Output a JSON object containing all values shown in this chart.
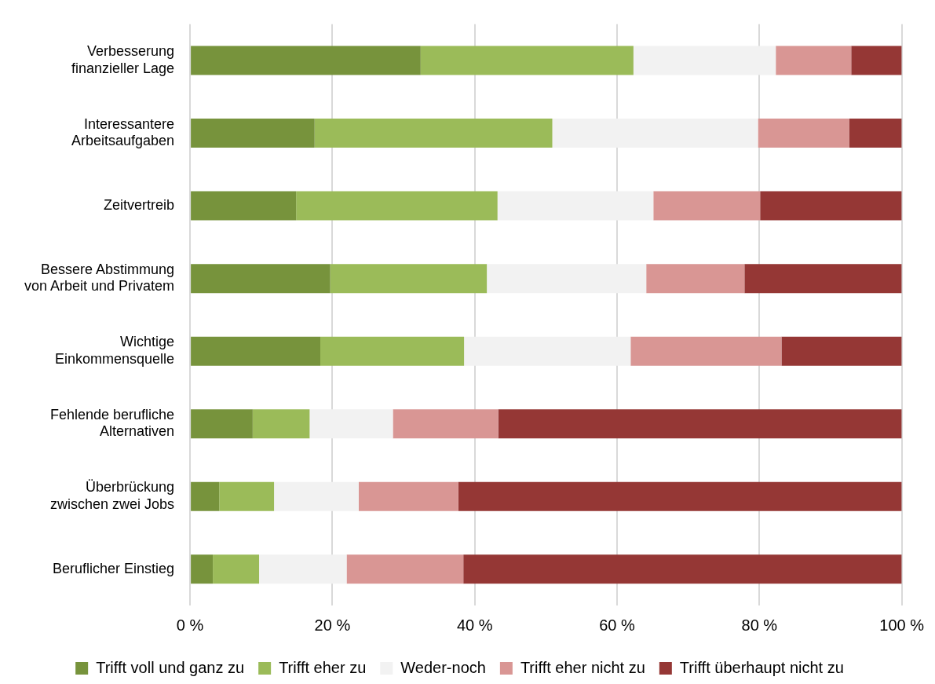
{
  "chart_data": {
    "type": "bar",
    "orientation": "horizontal",
    "stacked": true,
    "categories": [
      "Verbesserung\nfinanzieller Lage",
      "Interessantere\nArbeitsaufgaben",
      "Zeitvertreib",
      "Bessere Abstimmung\nvon Arbeit und Privatem",
      "Wichtige\nEinkommensquelle",
      "Fehlende berufliche\nAlternativen",
      "Überbrückung\nzwischen zwei Jobs",
      "Beruflicher Einstieg"
    ],
    "series": [
      {
        "name": "Trifft voll und ganz zu",
        "color": "#77933c",
        "values": [
          32.4,
          17.5,
          14.9,
          19.7,
          18.3,
          8.8,
          4.1,
          3.2
        ]
      },
      {
        "name": "Trifft eher zu",
        "color": "#9bbb59",
        "values": [
          29.9,
          33.4,
          28.3,
          22.0,
          20.2,
          8.0,
          7.7,
          6.5
        ]
      },
      {
        "name": "Weder-noch",
        "color": "#f2f2f2",
        "values": [
          20.0,
          28.9,
          21.9,
          22.4,
          23.4,
          11.7,
          11.9,
          12.3
        ]
      },
      {
        "name": "Trifft eher nicht zu",
        "color": "#d99694",
        "values": [
          10.6,
          12.8,
          15.0,
          13.8,
          21.2,
          14.8,
          14.0,
          16.4
        ]
      },
      {
        "name": "Trifft überhaupt nicht zu",
        "color": "#953735",
        "values": [
          7.1,
          7.4,
          19.9,
          22.1,
          16.9,
          56.7,
          62.3,
          61.6
        ]
      }
    ],
    "xlim": [
      0,
      100
    ],
    "xticks": [
      {
        "value": 0,
        "label": "0 %"
      },
      {
        "value": 20,
        "label": "20 %"
      },
      {
        "value": 40,
        "label": "40 %"
      },
      {
        "value": 60,
        "label": "60 %"
      },
      {
        "value": 80,
        "label": "80 %"
      },
      {
        "value": 100,
        "label": "100 %"
      }
    ],
    "grid": "x",
    "legend": "bottom"
  }
}
